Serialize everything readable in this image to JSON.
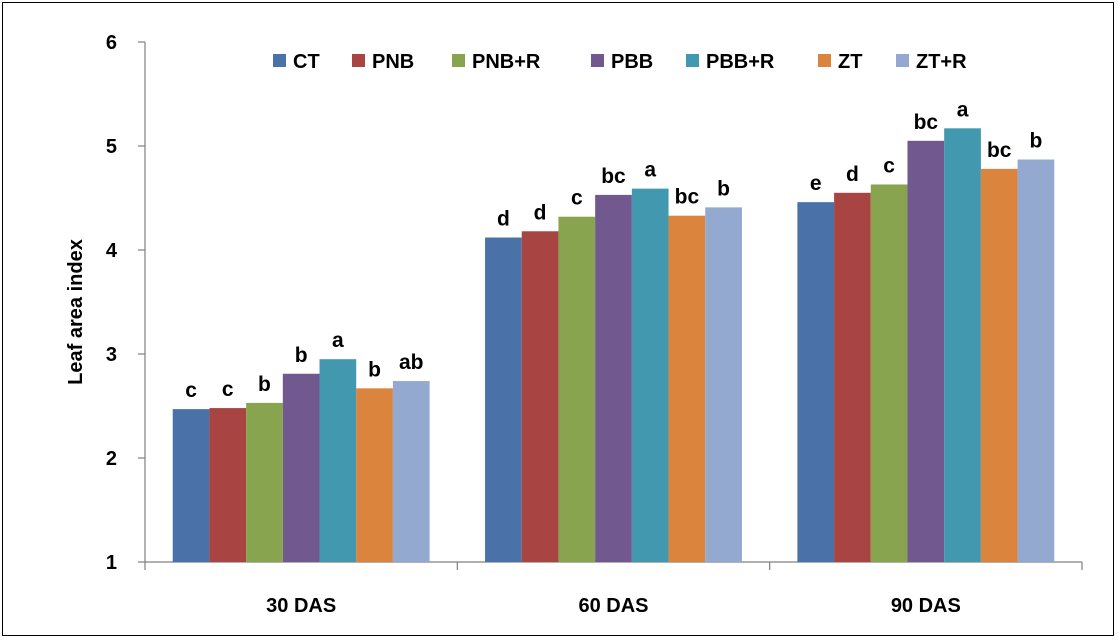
{
  "chart_data": {
    "type": "bar",
    "title": "",
    "xlabel": "",
    "ylabel": "Leaf area index",
    "ylim": [
      1,
      6
    ],
    "yticks": [
      1,
      2,
      3,
      4,
      5,
      6
    ],
    "grid": false,
    "legend_position": "top",
    "categories": [
      "30 DAS",
      "60 DAS",
      "90 DAS"
    ],
    "series": [
      {
        "name": "CT",
        "color": "#4A72A8",
        "values": [
          2.47,
          4.12,
          4.46
        ],
        "labels": [
          "c",
          "d",
          "e"
        ]
      },
      {
        "name": "PNB",
        "color": "#A84442",
        "values": [
          2.48,
          4.18,
          4.55
        ],
        "labels": [
          "c",
          "d",
          "d"
        ]
      },
      {
        "name": "PNB+R",
        "color": "#88A44E",
        "values": [
          2.53,
          4.32,
          4.63
        ],
        "labels": [
          "b",
          "c",
          "c"
        ]
      },
      {
        "name": "PBB",
        "color": "#71588F",
        "values": [
          2.81,
          4.53,
          5.05
        ],
        "labels": [
          "b",
          "bc",
          "bc"
        ]
      },
      {
        "name": "PBB+R",
        "color": "#4298AE",
        "values": [
          2.95,
          4.59,
          5.17
        ],
        "labels": [
          "a",
          "a",
          "a"
        ]
      },
      {
        "name": "ZT",
        "color": "#DB843D",
        "values": [
          2.67,
          4.33,
          4.78
        ],
        "labels": [
          "b",
          "bc",
          "bc"
        ]
      },
      {
        "name": "ZT+R",
        "color": "#94A9D0",
        "values": [
          2.74,
          4.41,
          4.87
        ],
        "labels": [
          "ab",
          "b",
          "b"
        ]
      }
    ]
  }
}
